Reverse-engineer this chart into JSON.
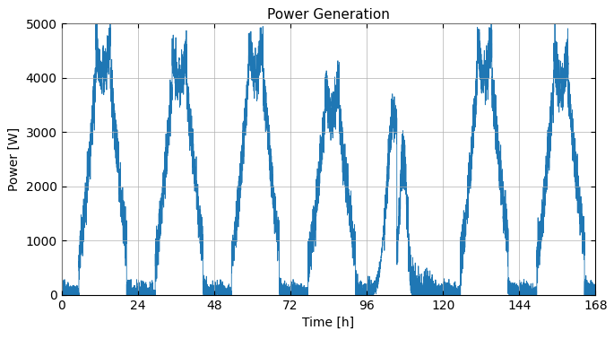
{
  "title": "Power Generation",
  "xlabel": "Time [h]",
  "ylabel": "Power [W]",
  "xlim": [
    0,
    168
  ],
  "ylim": [
    0,
    5000
  ],
  "xticks": [
    0,
    24,
    48,
    72,
    96,
    120,
    144,
    168
  ],
  "yticks": [
    0,
    1000,
    2000,
    3000,
    4000,
    5000
  ],
  "line_color": "#1f77b4",
  "line_width": 0.6,
  "bg_color": "#ffffff",
  "grid_color": "#b0b0b0",
  "num_points": 10080,
  "hours": 168,
  "title_fontsize": 11,
  "label_fontsize": 10,
  "tick_fontsize": 10
}
